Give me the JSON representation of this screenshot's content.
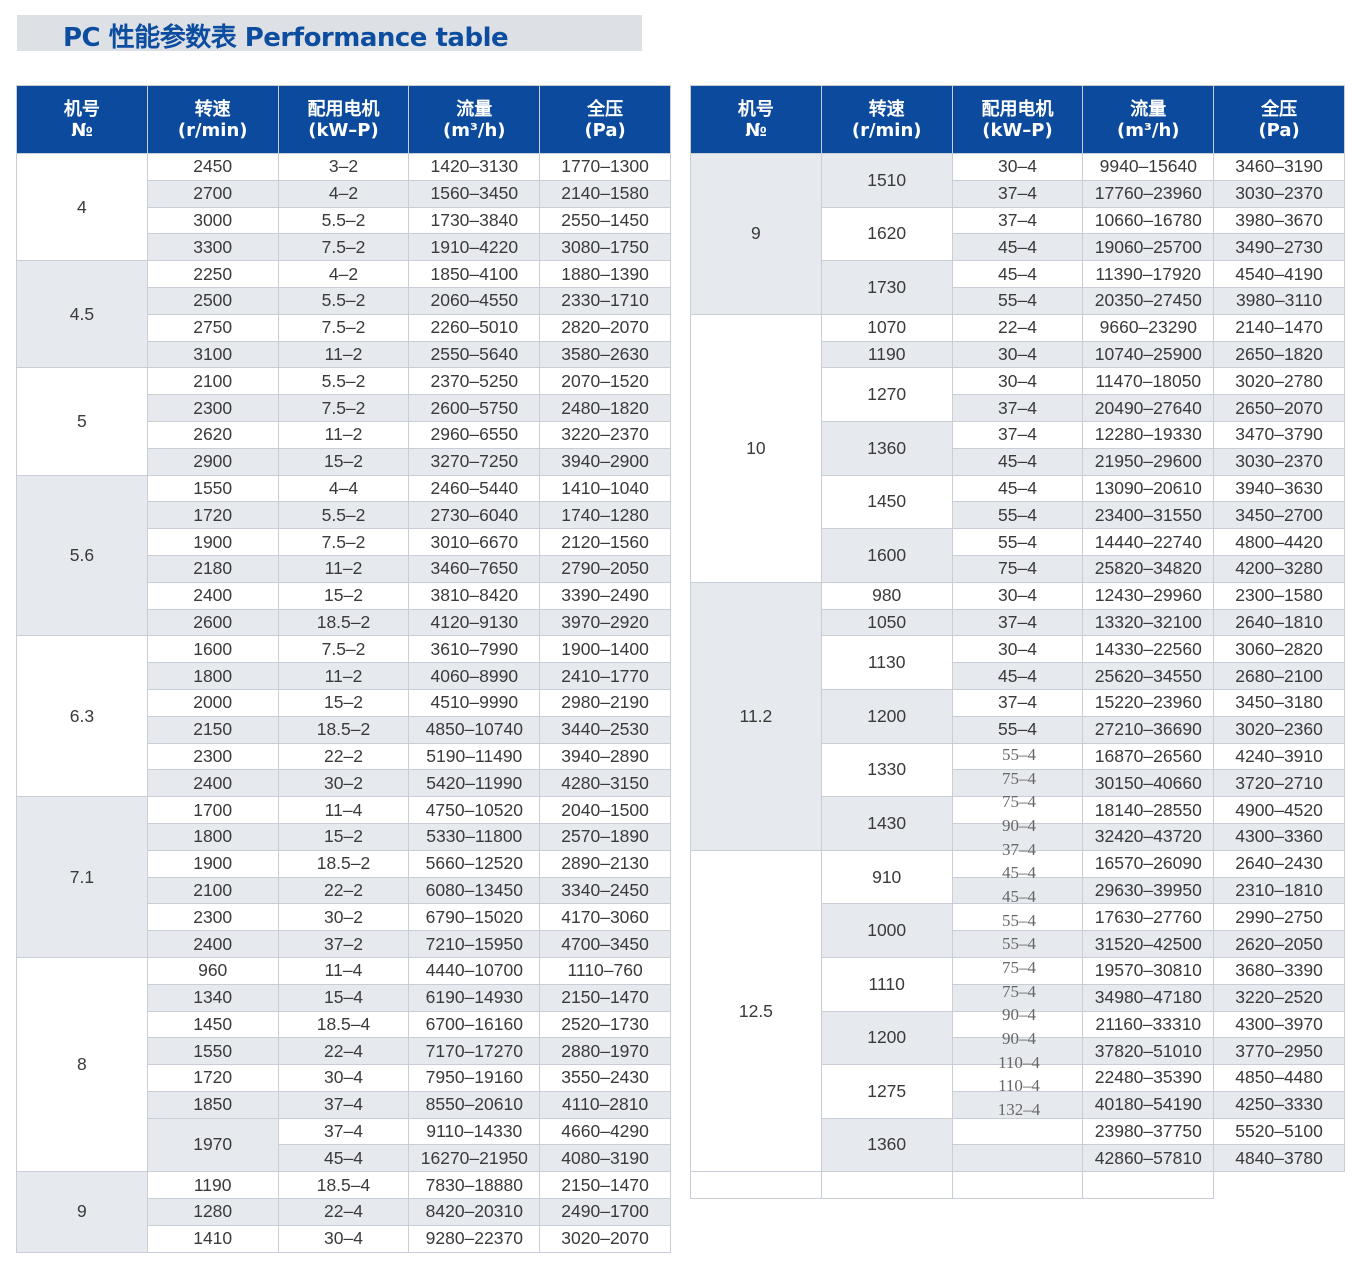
{
  "title": "PC 性能参数表  Performance table",
  "headers": [
    {
      "zh": "机号",
      "en": "№"
    },
    {
      "zh": "转速",
      "en": "(r/min)"
    },
    {
      "zh": "配用电机",
      "en": "(kW–P)"
    },
    {
      "zh": "流量",
      "en": "(m³/h)"
    },
    {
      "zh": "全压",
      "en": "(Pa)"
    }
  ],
  "colors": {
    "header": "#0b4a9c",
    "title": "#0d4da0",
    "shade": "#e6e9ee"
  },
  "left_table": [
    {
      "no": "4",
      "speeds": [
        {
          "rpm": "2450",
          "rows": [
            [
              "3–2",
              "1420–3130",
              "1770–1300"
            ]
          ]
        },
        {
          "rpm": "2700",
          "rows": [
            [
              "4–2",
              "1560–3450",
              "2140–1580"
            ]
          ]
        },
        {
          "rpm": "3000",
          "rows": [
            [
              "5.5–2",
              "1730–3840",
              "2550–1450"
            ]
          ]
        },
        {
          "rpm": "3300",
          "rows": [
            [
              "7.5–2",
              "1910–4220",
              "3080–1750"
            ]
          ]
        }
      ]
    },
    {
      "no": "4.5",
      "speeds": [
        {
          "rpm": "2250",
          "rows": [
            [
              "4–2",
              "1850–4100",
              "1880–1390"
            ]
          ]
        },
        {
          "rpm": "2500",
          "rows": [
            [
              "5.5–2",
              "2060–4550",
              "2330–1710"
            ]
          ]
        },
        {
          "rpm": "2750",
          "rows": [
            [
              "7.5–2",
              "2260–5010",
              "2820–2070"
            ]
          ]
        },
        {
          "rpm": "3100",
          "rows": [
            [
              "11–2",
              "2550–5640",
              "3580–2630"
            ]
          ]
        }
      ]
    },
    {
      "no": "5",
      "speeds": [
        {
          "rpm": "2100",
          "rows": [
            [
              "5.5–2",
              "2370–5250",
              "2070–1520"
            ]
          ]
        },
        {
          "rpm": "2300",
          "rows": [
            [
              "7.5–2",
              "2600–5750",
              "2480–1820"
            ]
          ]
        },
        {
          "rpm": "2620",
          "rows": [
            [
              "11–2",
              "2960–6550",
              "3220–2370"
            ]
          ]
        },
        {
          "rpm": "2900",
          "rows": [
            [
              "15–2",
              "3270–7250",
              "3940–2900"
            ]
          ]
        }
      ]
    },
    {
      "no": "5.6",
      "speeds": [
        {
          "rpm": "1550",
          "rows": [
            [
              "4–4",
              "2460–5440",
              "1410–1040"
            ]
          ]
        },
        {
          "rpm": "1720",
          "rows": [
            [
              "5.5–2",
              "2730–6040",
              "1740–1280"
            ]
          ]
        },
        {
          "rpm": "1900",
          "rows": [
            [
              "7.5–2",
              "3010–6670",
              "2120–1560"
            ]
          ]
        },
        {
          "rpm": "2180",
          "rows": [
            [
              "11–2",
              "3460–7650",
              "2790–2050"
            ]
          ]
        },
        {
          "rpm": "2400",
          "rows": [
            [
              "15–2",
              "3810–8420",
              "3390–2490"
            ]
          ]
        },
        {
          "rpm": "2600",
          "rows": [
            [
              "18.5–2",
              "4120–9130",
              "3970–2920"
            ]
          ]
        }
      ]
    },
    {
      "no": "6.3",
      "speeds": [
        {
          "rpm": "1600",
          "rows": [
            [
              "7.5–2",
              "3610–7990",
              "1900–1400"
            ]
          ]
        },
        {
          "rpm": "1800",
          "rows": [
            [
              "11–2",
              "4060–8990",
              "2410–1770"
            ]
          ]
        },
        {
          "rpm": "2000",
          "rows": [
            [
              "15–2",
              "4510–9990",
              "2980–2190"
            ]
          ]
        },
        {
          "rpm": "2150",
          "rows": [
            [
              "18.5–2",
              "4850–10740",
              "3440–2530"
            ]
          ]
        },
        {
          "rpm": "2300",
          "rows": [
            [
              "22–2",
              "5190–11490",
              "3940–2890"
            ]
          ]
        },
        {
          "rpm": "2400",
          "rows": [
            [
              "30–2",
              "5420–11990",
              "4280–3150"
            ]
          ]
        }
      ]
    },
    {
      "no": "7.1",
      "speeds": [
        {
          "rpm": "1700",
          "rows": [
            [
              "11–4",
              "4750–10520",
              "2040–1500"
            ]
          ]
        },
        {
          "rpm": "1800",
          "rows": [
            [
              "15–2",
              "5330–11800",
              "2570–1890"
            ]
          ]
        },
        {
          "rpm": "1900",
          "rows": [
            [
              "18.5–2",
              "5660–12520",
              "2890–2130"
            ]
          ]
        },
        {
          "rpm": "2100",
          "rows": [
            [
              "22–2",
              "6080–13450",
              "3340–2450"
            ]
          ]
        },
        {
          "rpm": "2300",
          "rows": [
            [
              "30–2",
              "6790–15020",
              "4170–3060"
            ]
          ]
        },
        {
          "rpm": "2400",
          "rows": [
            [
              "37–2",
              "7210–15950",
              "4700–3450"
            ]
          ]
        }
      ]
    },
    {
      "no": "8",
      "speeds": [
        {
          "rpm": "960",
          "rows": [
            [
              "11–4",
              "4440–10700",
              "1110–760"
            ]
          ]
        },
        {
          "rpm": "1340",
          "rows": [
            [
              "15–4",
              "6190–14930",
              "2150–1470"
            ]
          ]
        },
        {
          "rpm": "1450",
          "rows": [
            [
              "18.5–4",
              "6700–16160",
              "2520–1730"
            ]
          ]
        },
        {
          "rpm": "1550",
          "rows": [
            [
              "22–4",
              "7170–17270",
              "2880–1970"
            ]
          ]
        },
        {
          "rpm": "1720",
          "rows": [
            [
              "30–4",
              "7950–19160",
              "3550–2430"
            ]
          ]
        },
        {
          "rpm": "1850",
          "rows": [
            [
              "37–4",
              "8550–20610",
              "4110–2810"
            ]
          ]
        },
        {
          "rpm": "1970",
          "rows": [
            [
              "37–4",
              "9110–14330",
              "4660–4290"
            ],
            [
              "45–4",
              "16270–21950",
              "4080–3190"
            ]
          ]
        }
      ]
    },
    {
      "no": "9",
      "speeds": [
        {
          "rpm": "1190",
          "rows": [
            [
              "18.5–4",
              "7830–18880",
              "2150–1470"
            ]
          ]
        },
        {
          "rpm": "1280",
          "rows": [
            [
              "22–4",
              "8420–20310",
              "2490–1700"
            ]
          ]
        },
        {
          "rpm": "1410",
          "rows": [
            [
              "30–4",
              "9280–22370",
              "3020–2070"
            ]
          ]
        }
      ]
    }
  ],
  "right_table": [
    {
      "no": "9",
      "speeds": [
        {
          "rpm": "1510",
          "rows": [
            [
              "30–4",
              "9940–15640",
              "3460–3190"
            ],
            [
              "37–4",
              "17760–23960",
              "3030–2370"
            ]
          ]
        },
        {
          "rpm": "1620",
          "rows": [
            [
              "37–4",
              "10660–16780",
              "3980–3670"
            ],
            [
              "45–4",
              "19060–25700",
              "3490–2730"
            ]
          ]
        },
        {
          "rpm": "1730",
          "rows": [
            [
              "45–4",
              "11390–17920",
              "4540–4190"
            ],
            [
              "55–4",
              "20350–27450",
              "3980–3110"
            ]
          ]
        }
      ]
    },
    {
      "no": "10",
      "speeds": [
        {
          "rpm": "1070",
          "rows": [
            [
              "22–4",
              "9660–23290",
              "2140–1470"
            ]
          ]
        },
        {
          "rpm": "1190",
          "rows": [
            [
              "30–4",
              "10740–25900",
              "2650–1820"
            ]
          ]
        },
        {
          "rpm": "1270",
          "rows": [
            [
              "30–4",
              "11470–18050",
              "3020–2780"
            ],
            [
              "37–4",
              "20490–27640",
              "2650–2070"
            ]
          ]
        },
        {
          "rpm": "1360",
          "rows": [
            [
              "37–4",
              "12280–19330",
              "3470–3790"
            ],
            [
              "45–4",
              "21950–29600",
              "3030–2370"
            ]
          ]
        },
        {
          "rpm": "1450",
          "rows": [
            [
              "45–4",
              "13090–20610",
              "3940–3630"
            ],
            [
              "55–4",
              "23400–31550",
              "3450–2700"
            ]
          ]
        },
        {
          "rpm": "1600",
          "rows": [
            [
              "55–4",
              "14440–22740",
              "4800–4420"
            ],
            [
              "75–4",
              "25820–34820",
              "4200–3280"
            ]
          ]
        }
      ]
    },
    {
      "no": "11.2",
      "speeds": [
        {
          "rpm": "980",
          "rows": [
            [
              "30–4",
              "12430–29960",
              "2300–1580"
            ]
          ]
        },
        {
          "rpm": "1050",
          "rows": [
            [
              "37–4",
              "13320–32100",
              "2640–1810"
            ]
          ]
        },
        {
          "rpm": "1130",
          "rows": [
            [
              "30–4",
              "14330–22560",
              "3060–2820"
            ],
            [
              "45–4",
              "25620–34550",
              "2680–2100"
            ]
          ]
        },
        {
          "rpm": "1200",
          "rows": [
            [
              "37–4",
              "15220–23960",
              "3450–3180"
            ],
            [
              "55–4",
              "27210–36690",
              "3020–2360"
            ]
          ]
        },
        {
          "rpm": "1330",
          "rows": [
            [
              "",
              "16870–26560",
              "4240–3910"
            ],
            [
              "",
              "30150–40660",
              "3720–2710"
            ]
          ]
        },
        {
          "rpm": "1430",
          "rows": [
            [
              "",
              "18140–28550",
              "4900–4520"
            ],
            [
              "",
              "32420–43720",
              "4300–3360"
            ]
          ]
        }
      ]
    },
    {
      "no": "12.5",
      "speeds": [
        {
          "rpm": "910",
          "rows": [
            [
              "",
              "16570–26090",
              "2640–2430"
            ],
            [
              "",
              "29630–39950",
              "2310–1810"
            ]
          ]
        },
        {
          "rpm": "1000",
          "rows": [
            [
              "",
              "17630–27760",
              "2990–2750"
            ],
            [
              "",
              "31520–42500",
              "2620–2050"
            ]
          ]
        },
        {
          "rpm": "1110",
          "rows": [
            [
              "",
              "19570–30810",
              "3680–3390"
            ],
            [
              "",
              "34980–47180",
              "3220–2520"
            ]
          ]
        },
        {
          "rpm": "1200",
          "rows": [
            [
              "",
              "21160–33310",
              "4300–3970"
            ],
            [
              "",
              "37820–51010",
              "3770–2950"
            ]
          ]
        },
        {
          "rpm": "1275",
          "rows": [
            [
              "",
              "22480–35390",
              "4850–4480"
            ],
            [
              "",
              "40180–54190",
              "4250–3330"
            ]
          ]
        },
        {
          "rpm": "1360",
          "rows": [
            [
              "",
              "23980–37750",
              "5520–5100"
            ],
            [
              "",
              "42860–57810",
              "4840–3780"
            ]
          ]
        }
      ]
    }
  ],
  "misaligned_motor_labels": [
    "55–4",
    "75–4",
    "75–4",
    "90–4",
    "37–4",
    "45–4",
    "45–4",
    "55–4",
    "55–4",
    "75–4",
    "75–4",
    "90–4",
    "90–4",
    "110–4",
    "110–4",
    "132–4"
  ]
}
